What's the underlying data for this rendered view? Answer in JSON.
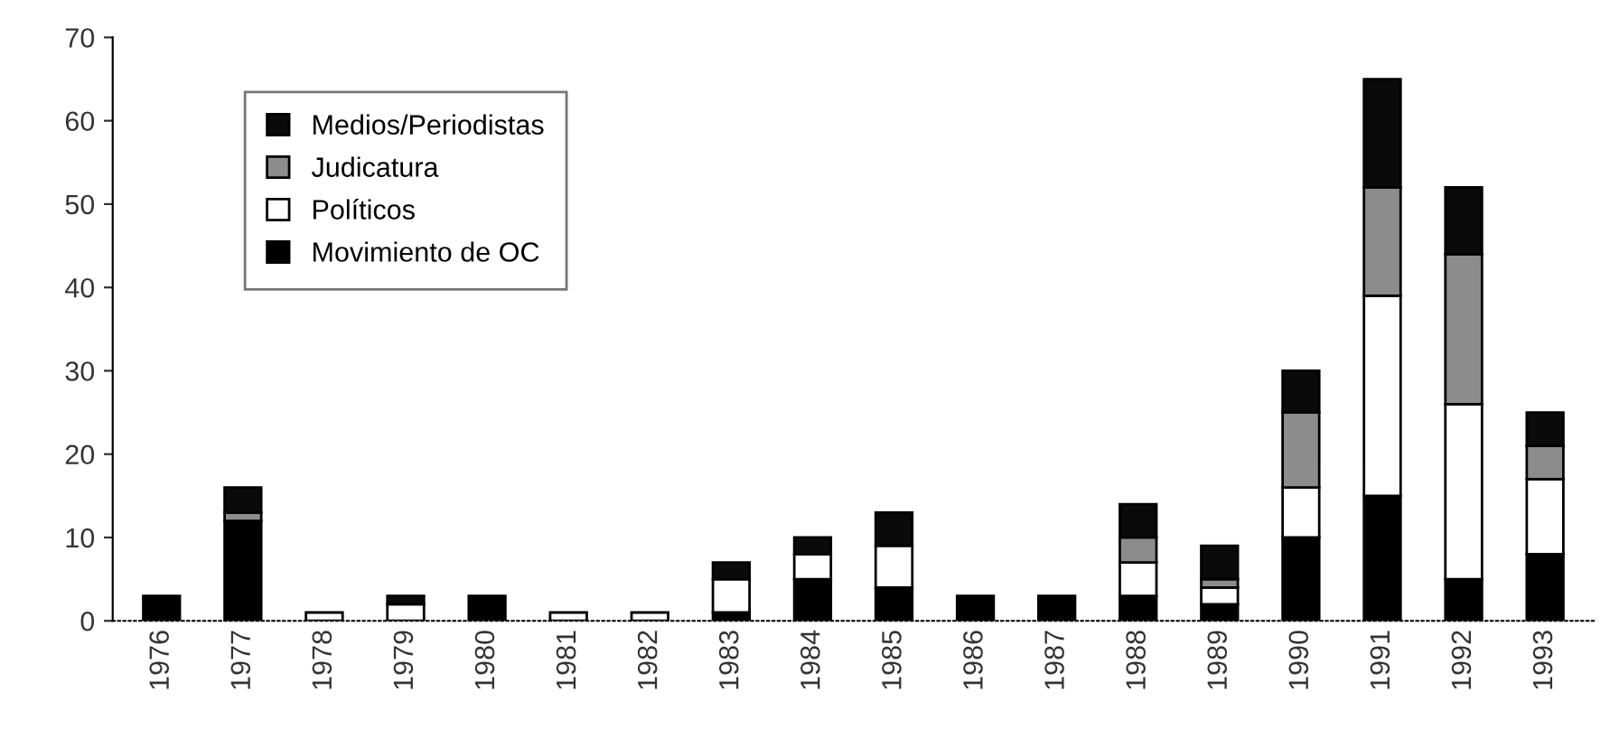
{
  "chart_data": {
    "type": "bar",
    "stacked": true,
    "categories": [
      "1976",
      "1977",
      "1978",
      "1979",
      "1980",
      "1981",
      "1982",
      "1983",
      "1984",
      "1985",
      "1986",
      "1987",
      "1988",
      "1989",
      "1990",
      "1991",
      "1992",
      "1993"
    ],
    "series": [
      {
        "name": "Movimiento de OC",
        "color": "#000000",
        "values": [
          3,
          12,
          0,
          0,
          3,
          0,
          0,
          1,
          5,
          4,
          3,
          3,
          3,
          2,
          10,
          15,
          5,
          8
        ]
      },
      {
        "name": "Políticos",
        "color": "#ffffff",
        "values": [
          0,
          0,
          1,
          2,
          0,
          1,
          1,
          4,
          3,
          5,
          0,
          0,
          4,
          2,
          6,
          24,
          21,
          9
        ]
      },
      {
        "name": "Judicatura",
        "color": "#8c8c8c",
        "values": [
          0,
          1,
          0,
          0,
          0,
          0,
          0,
          0,
          0,
          0,
          0,
          0,
          3,
          1,
          9,
          13,
          18,
          4
        ]
      },
      {
        "name": "Medios/Periodistas",
        "color": "#0a0a0a",
        "values": [
          0,
          3,
          0,
          1,
          0,
          0,
          0,
          2,
          2,
          4,
          0,
          0,
          4,
          4,
          5,
          13,
          8,
          4
        ]
      }
    ],
    "ylim": [
      0,
      70
    ],
    "yticks": [
      0,
      10,
      20,
      30,
      40,
      50,
      60,
      70
    ],
    "grid": false,
    "legend": "top left"
  }
}
